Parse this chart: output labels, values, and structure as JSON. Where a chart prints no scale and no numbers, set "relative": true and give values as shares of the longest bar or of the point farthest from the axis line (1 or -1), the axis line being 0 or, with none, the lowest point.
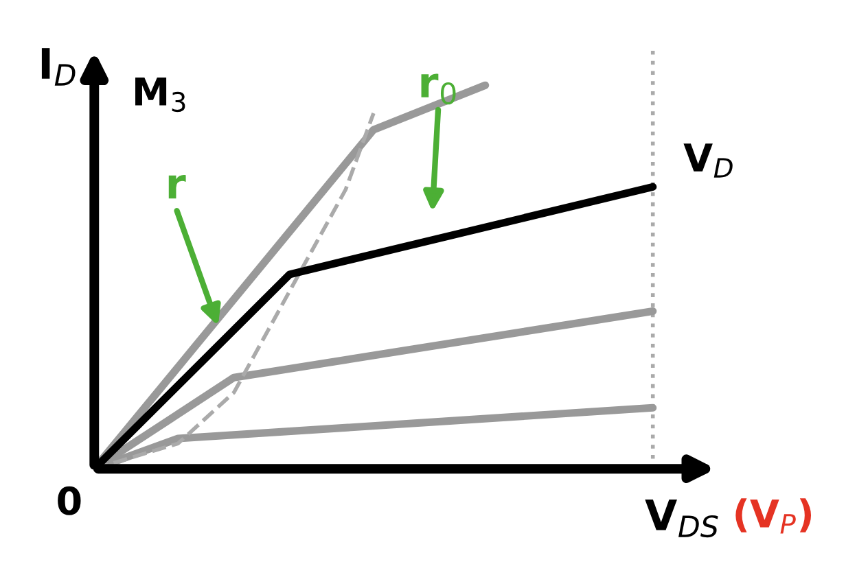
{
  "chart_data": {
    "type": "line",
    "relative": true,
    "ylabel": "I$_{D}$",
    "xlabel": "V$_{DS}$",
    "categories": [
      null,
      null,
      null,
      null,
      null,
      null,
      null,
      null,
      null,
      null,
      null,
      null,
      null,
      null,
      null,
      null,
      null,
      null,
      null,
      null,
      null
    ],
    "series": [
      {
        "color": "#999999",
        "values": [
          0,
          null,
          null,
          null,
          null,
          null,
          null,
          null,
          null,
          null,
          0.884,
          null,
          null,
          null,
          1,
          null,
          null,
          null,
          null,
          null,
          null
        ]
      },
      {
        "name": "V$_{D}$",
        "color": "#000000",
        "values": [
          0,
          null,
          null,
          null,
          null,
          null,
          null,
          0.507,
          null,
          null,
          null,
          null,
          null,
          null,
          null,
          null,
          null,
          null,
          null,
          null,
          0.735
        ]
      },
      {
        "color": "#999999",
        "values": [
          0,
          null,
          null,
          null,
          null,
          0.238,
          null,
          null,
          null,
          null,
          null,
          null,
          null,
          null,
          null,
          null,
          null,
          null,
          null,
          null,
          0.411
        ]
      },
      {
        "color": "#999999",
        "values": [
          0,
          null,
          null,
          0.079,
          null,
          null,
          null,
          null,
          null,
          null,
          null,
          null,
          null,
          null,
          null,
          null,
          null,
          null,
          null,
          null,
          0.159
        ]
      },
      {
        "color": "#aaaaaa",
        "line_style": "dashed",
        "values": [
          0,
          null,
          null,
          0.066,
          null,
          0.199,
          null,
          0.464,
          null,
          0.728,
          0.927,
          null,
          null,
          null,
          null,
          null,
          null,
          null,
          null,
          null,
          null
        ]
      }
    ],
    "annotations": [
      "M$_{3}$",
      "0",
      "(V$_{P}$)",
      "r",
      "r$_{0}$"
    ],
    "grid": false,
    "legend": false,
    "marker": "none",
    "line_style": "solid"
  }
}
